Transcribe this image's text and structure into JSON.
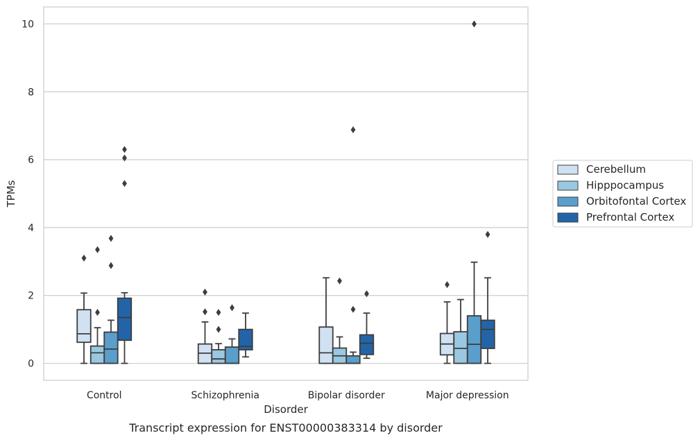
{
  "caption": "Transcript expression for ENST00000383314 by disorder",
  "chart_data": {
    "type": "box",
    "xlabel": "Disorder",
    "ylabel": "TPMs",
    "ylim": [
      -0.5,
      10.5
    ],
    "yticks": [
      0,
      2,
      4,
      6,
      8,
      10
    ],
    "grid": "horizontal",
    "legend_position": "right",
    "categories": [
      "Control",
      "Schizophrenia",
      "Bipolar disorder",
      "Major depression"
    ],
    "series": [
      {
        "name": "Cerebellum",
        "color": "#d0e1f2",
        "boxes": [
          {
            "whisker_low": 0.0,
            "q1": 0.62,
            "median": 0.87,
            "q3": 1.58,
            "whisker_high": 2.07,
            "outliers": [
              3.1
            ]
          },
          {
            "whisker_low": 0.0,
            "q1": 0.0,
            "median": 0.3,
            "q3": 0.57,
            "whisker_high": 1.22,
            "outliers": [
              1.52,
              2.1
            ]
          },
          {
            "whisker_low": 0.0,
            "q1": 0.0,
            "median": 0.31,
            "q3": 1.07,
            "whisker_high": 2.52,
            "outliers": []
          },
          {
            "whisker_low": 0.0,
            "q1": 0.25,
            "median": 0.57,
            "q3": 0.88,
            "whisker_high": 1.81,
            "outliers": [
              2.32
            ]
          }
        ]
      },
      {
        "name": "Hipppocampus",
        "color": "#9ac8e0",
        "boxes": [
          {
            "whisker_low": 0.0,
            "q1": 0.0,
            "median": 0.31,
            "q3": 0.51,
            "whisker_high": 1.05,
            "outliers": [
              1.5,
              3.35
            ]
          },
          {
            "whisker_low": 0.0,
            "q1": 0.0,
            "median": 0.13,
            "q3": 0.4,
            "whisker_high": 0.58,
            "outliers": [
              1.0,
              1.5
            ]
          },
          {
            "whisker_low": 0.0,
            "q1": 0.0,
            "median": 0.22,
            "q3": 0.45,
            "whisker_high": 0.78,
            "outliers": [
              2.43
            ]
          },
          {
            "whisker_low": 0.0,
            "q1": 0.0,
            "median": 0.44,
            "q3": 0.93,
            "whisker_high": 1.88,
            "outliers": []
          }
        ]
      },
      {
        "name": "Orbitofontal Cortex",
        "color": "#5a9ecb",
        "boxes": [
          {
            "whisker_low": 0.0,
            "q1": 0.0,
            "median": 0.42,
            "q3": 0.92,
            "whisker_high": 1.27,
            "outliers": [
              2.88,
              3.68
            ]
          },
          {
            "whisker_low": 0.0,
            "q1": 0.0,
            "median": 0.0,
            "q3": 0.48,
            "whisker_high": 0.72,
            "outliers": [
              1.64
            ]
          },
          {
            "whisker_low": 0.0,
            "q1": 0.0,
            "median": 0.0,
            "q3": 0.22,
            "whisker_high": 0.33,
            "outliers": [
              1.59,
              6.88
            ]
          },
          {
            "whisker_low": 0.0,
            "q1": 0.0,
            "median": 0.56,
            "q3": 1.4,
            "whisker_high": 2.98,
            "outliers": [
              10.0
            ]
          }
        ]
      },
      {
        "name": "Prefrontal Cortex",
        "color": "#2364a8",
        "boxes": [
          {
            "whisker_low": 0.0,
            "q1": 0.68,
            "median": 1.35,
            "q3": 1.92,
            "whisker_high": 2.08,
            "outliers": [
              5.3,
              6.05,
              6.3
            ]
          },
          {
            "whisker_low": 0.19,
            "q1": 0.4,
            "median": 0.5,
            "q3": 1.0,
            "whisker_high": 1.48,
            "outliers": []
          },
          {
            "whisker_low": 0.15,
            "q1": 0.26,
            "median": 0.59,
            "q3": 0.84,
            "whisker_high": 1.48,
            "outliers": [
              2.05
            ]
          },
          {
            "whisker_low": 0.0,
            "q1": 0.44,
            "median": 1.0,
            "q3": 1.27,
            "whisker_high": 2.52,
            "outliers": [
              3.8
            ]
          }
        ]
      }
    ]
  }
}
